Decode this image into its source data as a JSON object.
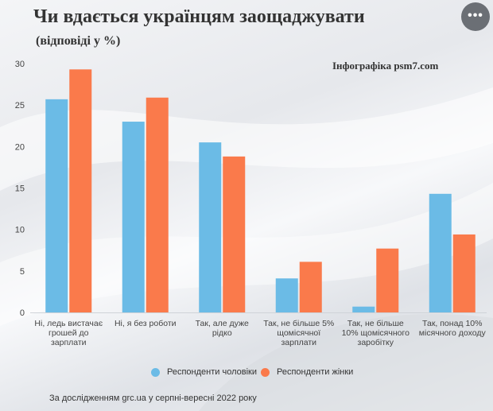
{
  "title": "Чи вдається українцям заощаджувати",
  "subtitle": "(відповіді у %)",
  "credit": "Інфографіка psm7.com",
  "menu_label": "•••",
  "source": "За дослідженням grc.ua у серпні-вересні 2022 року",
  "colors": {
    "men": "#6bbbe6",
    "women": "#fa7a4b"
  },
  "chart_data": {
    "type": "bar",
    "ylim": [
      0,
      30
    ],
    "yticks": [
      "0",
      "5",
      "10",
      "15",
      "20",
      "25",
      "30"
    ],
    "categories": [
      [
        "Ні, ледь вистачає",
        "грошей до",
        "зарплати"
      ],
      [
        "Ні, я без роботи"
      ],
      [
        "Так, але дуже",
        "рідко"
      ],
      [
        "Так, не більше 5%",
        "щомісячної",
        "зарплати"
      ],
      [
        "Так, не більше",
        "10% щомісячного",
        "заробітку"
      ],
      [
        "Так, понад 10%",
        "місячного доходу"
      ]
    ],
    "series": [
      {
        "name": "Респонденти чоловіки",
        "values": [
          25.7,
          23.0,
          20.5,
          4.1,
          0.7,
          14.3
        ]
      },
      {
        "name": "Респонденти жінки",
        "values": [
          29.3,
          25.9,
          18.8,
          6.1,
          7.7,
          9.4
        ]
      }
    ],
    "legend_position": "bottom",
    "grid": false
  }
}
